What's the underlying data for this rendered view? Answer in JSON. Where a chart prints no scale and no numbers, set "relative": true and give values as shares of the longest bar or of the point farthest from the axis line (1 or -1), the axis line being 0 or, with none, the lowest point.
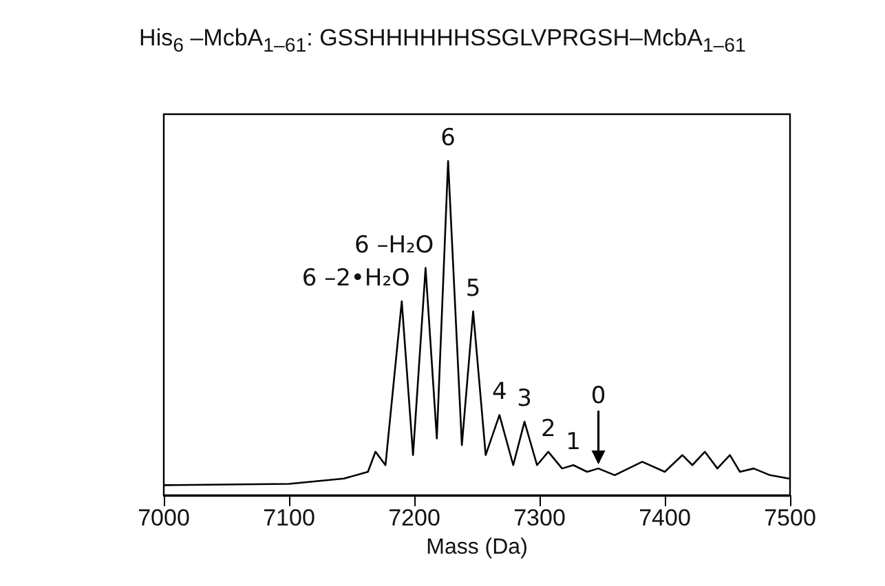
{
  "chart_data": {
    "type": "line",
    "relative": true,
    "title": "His$_{6}$ –McbA$_{1–61}$: GSSHHHHHHSSGLVPRGSH–McbA$_{1–61}$",
    "xlabel": "Mass (Da)",
    "xlim": [
      7000,
      7500
    ],
    "xticks": [
      7000,
      7100,
      7200,
      7300,
      7400,
      7500
    ],
    "marker": "none",
    "line_style": "solid",
    "series": [
      {
        "color": "#000000",
        "x": [
          7001,
          7100,
          7144,
          7163,
          7169,
          7177,
          7190,
          7199,
          7209,
          7218,
          7227,
          7238,
          7247,
          7257,
          7268,
          7279,
          7288,
          7298,
          7307,
          7318,
          7327,
          7338,
          7347,
          7360,
          7371,
          7382,
          7400,
          7414,
          7422,
          7432,
          7442,
          7452,
          7460,
          7471,
          7484,
          7499
        ],
        "values": [
          0.03,
          0.034,
          0.05,
          0.07,
          0.13,
          0.09,
          0.58,
          0.12,
          0.68,
          0.17,
          1.0,
          0.15,
          0.55,
          0.12,
          0.24,
          0.09,
          0.22,
          0.09,
          0.13,
          0.08,
          0.09,
          0.07,
          0.08,
          0.06,
          0.08,
          0.1,
          0.07,
          0.12,
          0.09,
          0.13,
          0.08,
          0.12,
          0.07,
          0.08,
          0.06,
          0.05
        ]
      }
    ],
    "annotations": [
      {
        "text": "6 –2•H₂O",
        "x": 7190,
        "y": 0.58
      },
      {
        "text": "6 –H₂O",
        "x": 7209,
        "y": 0.68
      },
      {
        "text": "6",
        "x": 7227,
        "y": 1.0
      },
      {
        "text": "5",
        "x": 7247,
        "y": 0.55
      },
      {
        "text": "4",
        "x": 7268,
        "y": 0.24
      },
      {
        "text": "3",
        "x": 7288,
        "y": 0.22
      },
      {
        "text": "2",
        "x": 7307,
        "y": 0.13
      },
      {
        "text": "1",
        "x": 7327,
        "y": 0.09
      },
      {
        "text": "0",
        "x": 7347,
        "y": 0.08
      }
    ]
  }
}
